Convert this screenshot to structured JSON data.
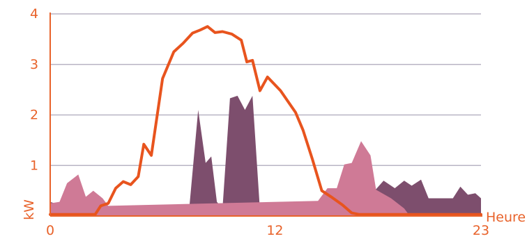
{
  "chart_data": {
    "type": "area",
    "xlabel": "Heure",
    "ylabel": "kW",
    "xlim": [
      0,
      23
    ],
    "ylim": [
      0,
      4
    ],
    "x_ticks": [
      "0",
      "12",
      "23"
    ],
    "y_ticks": [
      "1",
      "2",
      "3",
      "4"
    ],
    "grid": "horizontal",
    "colors": {
      "grid": "#b8b4c4",
      "axis": "#e8622a",
      "line": "#e8541e",
      "area_pink": "#cf7a96",
      "area_purple": "#7d4e6d"
    },
    "series": [
      {
        "kind": "area",
        "color_key": "area_purple",
        "points": [
          [
            0,
            0.28
          ],
          [
            0.8,
            0.18
          ],
          [
            1.4,
            0.05
          ],
          [
            2.2,
            0.1
          ],
          [
            2.8,
            0.18
          ],
          [
            3.3,
            0.05
          ],
          [
            4.0,
            0.05
          ],
          [
            5.8,
            0.05
          ],
          [
            6.1,
            0.2
          ],
          [
            6.4,
            0.2
          ],
          [
            6.7,
            0.05
          ],
          [
            7.4,
            0.05
          ],
          [
            7.9,
            2.1
          ],
          [
            8.3,
            1.05
          ],
          [
            8.6,
            1.18
          ],
          [
            8.9,
            0.28
          ],
          [
            9.2,
            0.15
          ],
          [
            9.6,
            2.33
          ],
          [
            10.0,
            2.38
          ],
          [
            10.4,
            2.1
          ],
          [
            10.8,
            2.38
          ],
          [
            11.2,
            0.12
          ],
          [
            11.8,
            0.12
          ],
          [
            13.2,
            0.12
          ],
          [
            13.7,
            0.05
          ],
          [
            14.2,
            0.12
          ],
          [
            14.8,
            0.45
          ],
          [
            15.5,
            0.3
          ],
          [
            16.2,
            0.25
          ],
          [
            17.2,
            0.45
          ],
          [
            17.8,
            0.7
          ],
          [
            18.4,
            0.55
          ],
          [
            18.9,
            0.7
          ],
          [
            19.3,
            0.6
          ],
          [
            19.8,
            0.72
          ],
          [
            20.2,
            0.35
          ],
          [
            21.5,
            0.35
          ],
          [
            21.9,
            0.58
          ],
          [
            22.3,
            0.42
          ],
          [
            22.7,
            0.45
          ],
          [
            23.0,
            0.35
          ]
        ]
      },
      {
        "kind": "area",
        "color_key": "area_pink",
        "points": [
          [
            0,
            0.25
          ],
          [
            0.5,
            0.28
          ],
          [
            0.9,
            0.65
          ],
          [
            1.5,
            0.82
          ],
          [
            1.9,
            0.38
          ],
          [
            2.3,
            0.5
          ],
          [
            2.8,
            0.35
          ],
          [
            3.1,
            0.2
          ],
          [
            14.3,
            0.3
          ],
          [
            14.8,
            0.55
          ],
          [
            15.3,
            0.55
          ],
          [
            15.7,
            1.02
          ],
          [
            16.1,
            1.05
          ],
          [
            16.6,
            1.48
          ],
          [
            17.1,
            1.2
          ],
          [
            17.4,
            0.52
          ],
          [
            18.2,
            0.35
          ],
          [
            18.9,
            0.15
          ],
          [
            19.2,
            0.0
          ]
        ]
      },
      {
        "kind": "line",
        "color_key": "line",
        "points": [
          [
            0,
            0.03
          ],
          [
            2.4,
            0.03
          ],
          [
            2.7,
            0.2
          ],
          [
            3.1,
            0.25
          ],
          [
            3.5,
            0.55
          ],
          [
            3.9,
            0.68
          ],
          [
            4.3,
            0.62
          ],
          [
            4.7,
            0.78
          ],
          [
            5.0,
            1.42
          ],
          [
            5.4,
            1.2
          ],
          [
            6.0,
            2.72
          ],
          [
            6.6,
            3.25
          ],
          [
            7.1,
            3.42
          ],
          [
            7.6,
            3.62
          ],
          [
            8.0,
            3.68
          ],
          [
            8.4,
            3.75
          ],
          [
            8.8,
            3.63
          ],
          [
            9.2,
            3.65
          ],
          [
            9.7,
            3.6
          ],
          [
            10.2,
            3.48
          ],
          [
            10.5,
            3.05
          ],
          [
            10.8,
            3.08
          ],
          [
            11.2,
            2.48
          ],
          [
            11.6,
            2.75
          ],
          [
            12.3,
            2.48
          ],
          [
            13.1,
            2.05
          ],
          [
            13.5,
            1.7
          ],
          [
            14.0,
            1.12
          ],
          [
            14.5,
            0.5
          ],
          [
            15.0,
            0.38
          ],
          [
            15.6,
            0.22
          ],
          [
            16.1,
            0.06
          ],
          [
            16.5,
            0.03
          ],
          [
            23.0,
            0.03
          ]
        ]
      }
    ]
  }
}
